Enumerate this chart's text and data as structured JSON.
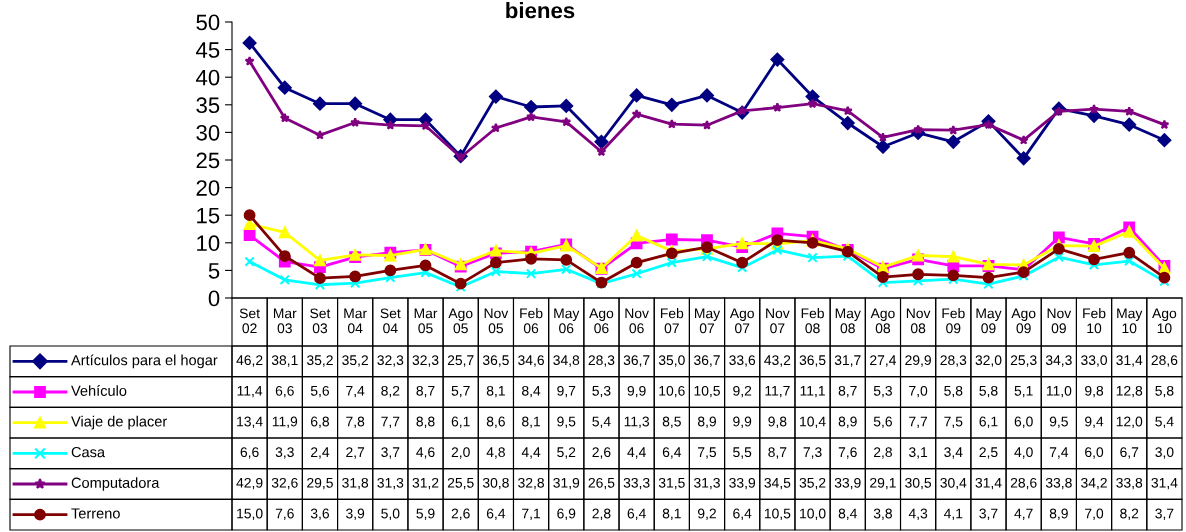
{
  "chart_data": {
    "type": "line",
    "title": "bienes",
    "categories": [
      "Set\n02",
      "Mar\n03",
      "Set\n03",
      "Mar\n04",
      "Set\n04",
      "Mar\n05",
      "Ago\n05",
      "Nov\n05",
      "Feb\n06",
      "May\n06",
      "Ago\n06",
      "Nov\n06",
      "Feb\n07",
      "May\n07",
      "Ago\n07",
      "Nov\n07",
      "Feb\n08",
      "May\n08",
      "Ago\n08",
      "Nov\n08",
      "Feb\n09",
      "May\n09",
      "Ago\n09",
      "Nov\n09",
      "Feb\n10",
      "May\n10",
      "Ago\n10"
    ],
    "ylim": [
      0,
      50
    ],
    "yticks": [
      0,
      5,
      10,
      15,
      20,
      25,
      30,
      35,
      40,
      45,
      50
    ],
    "grid": false,
    "legend": "bottom",
    "line_style": "solid",
    "series": [
      {
        "name": "Artículos para el hogar",
        "color": "#000080",
        "marker": "diamond",
        "values": [
          46.2,
          38.1,
          35.2,
          35.2,
          32.3,
          32.3,
          25.7,
          36.5,
          34.6,
          34.8,
          28.3,
          36.7,
          35.0,
          36.7,
          33.6,
          43.2,
          36.5,
          31.7,
          27.4,
          29.9,
          28.3,
          32.0,
          25.3,
          34.3,
          33.0,
          31.4,
          28.6
        ],
        "value_labels": [
          "46,2",
          "38,1",
          "35,2",
          "35,2",
          "32,3",
          "32,3",
          "25,7",
          "36,5",
          "34,6",
          "34,8",
          "28,3",
          "36,7",
          "35,0",
          "36,7",
          "33,6",
          "43,2",
          "36,5",
          "31,7",
          "27,4",
          "29,9",
          "28,3",
          "32,0",
          "25,3",
          "34,3",
          "33,0",
          "31,4",
          "28,6"
        ]
      },
      {
        "name": "Vehículo",
        "color": "#ff00ff",
        "marker": "square",
        "values": [
          11.4,
          6.6,
          5.6,
          7.4,
          8.2,
          8.7,
          5.7,
          8.1,
          8.4,
          9.7,
          5.3,
          9.9,
          10.6,
          10.5,
          9.2,
          11.7,
          11.1,
          8.7,
          5.3,
          7.0,
          5.8,
          5.8,
          5.1,
          11.0,
          9.8,
          12.8,
          5.8
        ],
        "value_labels": [
          "11,4",
          "6,6",
          "5,6",
          "7,4",
          "8,2",
          "8,7",
          "5,7",
          "8,1",
          "8,4",
          "9,7",
          "5,3",
          "9,9",
          "10,6",
          "10,5",
          "9,2",
          "11,7",
          "11,1",
          "8,7",
          "5,3",
          "7,0",
          "5,8",
          "5,8",
          "5,1",
          "11,0",
          "9,8",
          "12,8",
          "5,8"
        ]
      },
      {
        "name": "Viaje de placer",
        "color": "#ffff00",
        "marker": "triangle",
        "values": [
          13.4,
          11.9,
          6.8,
          7.8,
          7.7,
          8.8,
          6.1,
          8.6,
          8.1,
          9.5,
          5.4,
          11.3,
          8.5,
          8.9,
          9.9,
          9.8,
          10.4,
          8.9,
          5.6,
          7.7,
          7.5,
          6.1,
          6.0,
          9.5,
          9.4,
          12.0,
          5.4
        ],
        "value_labels": [
          "13,4",
          "11,9",
          "6,8",
          "7,8",
          "7,7",
          "8,8",
          "6,1",
          "8,6",
          "8,1",
          "9,5",
          "5,4",
          "11,3",
          "8,5",
          "8,9",
          "9,9",
          "9,8",
          "10,4",
          "8,9",
          "5,6",
          "7,7",
          "7,5",
          "6,1",
          "6,0",
          "9,5",
          "9,4",
          "12,0",
          "5,4"
        ]
      },
      {
        "name": "Casa",
        "color": "#00ffff",
        "marker": "cross",
        "values": [
          6.6,
          3.3,
          2.4,
          2.7,
          3.7,
          4.6,
          2.0,
          4.8,
          4.4,
          5.2,
          2.6,
          4.4,
          6.4,
          7.5,
          5.5,
          8.7,
          7.3,
          7.6,
          2.8,
          3.1,
          3.4,
          2.5,
          4.0,
          7.4,
          6.0,
          6.7,
          3.0
        ],
        "value_labels": [
          "6,6",
          "3,3",
          "2,4",
          "2,7",
          "3,7",
          "4,6",
          "2,0",
          "4,8",
          "4,4",
          "5,2",
          "2,6",
          "4,4",
          "6,4",
          "7,5",
          "5,5",
          "8,7",
          "7,3",
          "7,6",
          "2,8",
          "3,1",
          "3,4",
          "2,5",
          "4,0",
          "7,4",
          "6,0",
          "6,7",
          "3,0"
        ]
      },
      {
        "name": "Computadora",
        "color": "#800080",
        "marker": "star",
        "values": [
          42.9,
          32.6,
          29.5,
          31.8,
          31.3,
          31.2,
          25.5,
          30.8,
          32.8,
          31.9,
          26.5,
          33.3,
          31.5,
          31.3,
          33.9,
          34.5,
          35.2,
          33.9,
          29.1,
          30.5,
          30.4,
          31.4,
          28.6,
          33.8,
          34.2,
          33.8,
          31.4
        ],
        "value_labels": [
          "42,9",
          "32,6",
          "29,5",
          "31,8",
          "31,3",
          "31,2",
          "25,5",
          "30,8",
          "32,8",
          "31,9",
          "26,5",
          "33,3",
          "31,5",
          "31,3",
          "33,9",
          "34,5",
          "35,2",
          "33,9",
          "29,1",
          "30,5",
          "30,4",
          "31,4",
          "28,6",
          "33,8",
          "34,2",
          "33,8",
          "31,4"
        ]
      },
      {
        "name": "Terreno",
        "color": "#800000",
        "marker": "circle",
        "values": [
          15.0,
          7.6,
          3.6,
          3.9,
          5.0,
          5.9,
          2.6,
          6.4,
          7.1,
          6.9,
          2.8,
          6.4,
          8.1,
          9.2,
          6.4,
          10.5,
          10.0,
          8.4,
          3.8,
          4.3,
          4.1,
          3.7,
          4.7,
          8.9,
          7.0,
          8.2,
          3.7
        ],
        "value_labels": [
          "15,0",
          "7,6",
          "3,6",
          "3,9",
          "5,0",
          "5,9",
          "2,6",
          "6,4",
          "7,1",
          "6,9",
          "2,8",
          "6,4",
          "8,1",
          "9,2",
          "6,4",
          "10,5",
          "10,0",
          "8,4",
          "3,8",
          "4,3",
          "4,1",
          "3,7",
          "4,7",
          "8,9",
          "7,0",
          "8,2",
          "3,7"
        ]
      }
    ]
  }
}
